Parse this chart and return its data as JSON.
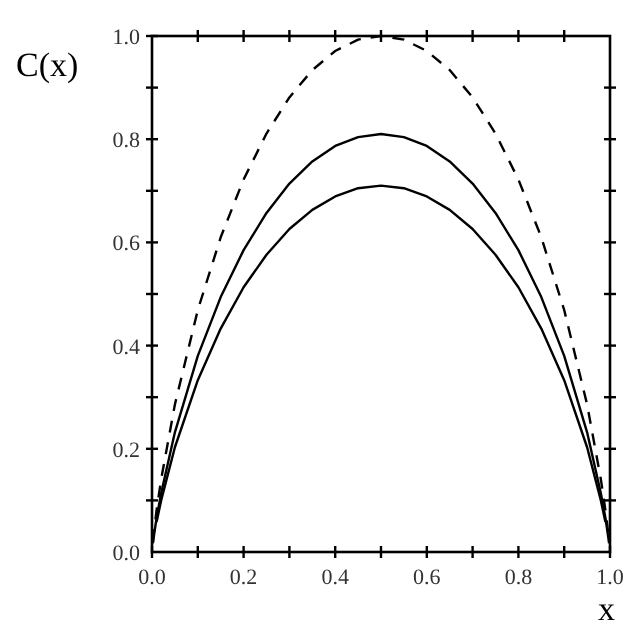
{
  "chart_data": {
    "type": "line",
    "xlabel": "x",
    "ylabel": "C(x)",
    "series": [
      {
        "color": "#000000",
        "line_style": "dashed",
        "x": [
          0.002,
          0.005,
          0.01,
          0.02,
          0.05,
          0.1,
          0.15,
          0.2,
          0.25,
          0.3,
          0.35,
          0.4,
          0.45,
          0.5,
          0.55,
          0.6,
          0.65,
          0.7,
          0.75,
          0.8,
          0.85,
          0.9,
          0.95,
          0.98,
          0.99,
          0.995,
          0.998
        ],
        "values": [
          0.021,
          0.045,
          0.081,
          0.141,
          0.286,
          0.469,
          0.61,
          0.722,
          0.811,
          0.881,
          0.934,
          0.971,
          0.993,
          1.0,
          0.993,
          0.971,
          0.934,
          0.881,
          0.811,
          0.722,
          0.61,
          0.469,
          0.286,
          0.141,
          0.081,
          0.045,
          0.021
        ]
      },
      {
        "color": "#000000",
        "line_style": "solid",
        "x": [
          0.002,
          0.005,
          0.01,
          0.02,
          0.05,
          0.1,
          0.15,
          0.2,
          0.25,
          0.3,
          0.35,
          0.4,
          0.45,
          0.5,
          0.55,
          0.6,
          0.65,
          0.7,
          0.75,
          0.8,
          0.85,
          0.9,
          0.95,
          0.98,
          0.99,
          0.995,
          0.998
        ],
        "values": [
          0.017,
          0.036,
          0.066,
          0.114,
          0.232,
          0.38,
          0.494,
          0.585,
          0.657,
          0.714,
          0.757,
          0.787,
          0.804,
          0.81,
          0.804,
          0.787,
          0.757,
          0.714,
          0.657,
          0.585,
          0.494,
          0.38,
          0.232,
          0.114,
          0.066,
          0.036,
          0.017
        ]
      },
      {
        "color": "#000000",
        "line_style": "solid",
        "x": [
          0.01,
          0.02,
          0.05,
          0.1,
          0.15,
          0.2,
          0.25,
          0.3,
          0.35,
          0.4,
          0.45,
          0.5,
          0.55,
          0.6,
          0.65,
          0.7,
          0.75,
          0.8,
          0.85,
          0.9,
          0.95,
          0.98,
          0.99
        ],
        "values": [
          0.058,
          0.1,
          0.203,
          0.333,
          0.433,
          0.513,
          0.576,
          0.626,
          0.663,
          0.689,
          0.705,
          0.71,
          0.705,
          0.689,
          0.663,
          0.626,
          0.576,
          0.513,
          0.433,
          0.333,
          0.203,
          0.1,
          0.058
        ]
      }
    ],
    "xlim": [
      0,
      1
    ],
    "ylim": [
      0,
      1
    ],
    "xticks": [
      {
        "value": 0,
        "label": "0.0"
      },
      {
        "value": 0.1,
        "label": null
      },
      {
        "value": 0.2,
        "label": "0.2"
      },
      {
        "value": 0.3,
        "label": null
      },
      {
        "value": 0.4,
        "label": "0.4"
      },
      {
        "value": 0.5,
        "label": null
      },
      {
        "value": 0.6,
        "label": "0.6"
      },
      {
        "value": 0.7,
        "label": null
      },
      {
        "value": 0.8,
        "label": "0.8"
      },
      {
        "value": 0.9,
        "label": null
      },
      {
        "value": 1,
        "label": "1.0"
      }
    ],
    "yticks": [
      {
        "value": 0,
        "label": "0.0"
      },
      {
        "value": 0.1,
        "label": null
      },
      {
        "value": 0.2,
        "label": "0.2"
      },
      {
        "value": 0.3,
        "label": null
      },
      {
        "value": 0.4,
        "label": "0.4"
      },
      {
        "value": 0.5,
        "label": null
      },
      {
        "value": 0.6,
        "label": "0.6"
      },
      {
        "value": 0.7,
        "label": null
      },
      {
        "value": 0.8,
        "label": "0.8"
      },
      {
        "value": 0.9,
        "label": null
      },
      {
        "value": 1,
        "label": "1.0"
      }
    ],
    "grid": false,
    "marker": "none"
  }
}
